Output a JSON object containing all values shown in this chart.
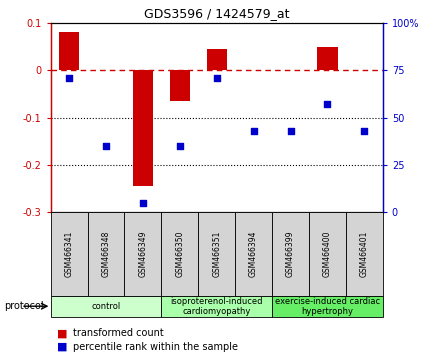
{
  "title": "GDS3596 / 1424579_at",
  "samples": [
    "GSM466341",
    "GSM466348",
    "GSM466349",
    "GSM466350",
    "GSM466351",
    "GSM466394",
    "GSM466399",
    "GSM466400",
    "GSM466401"
  ],
  "bar_values": [
    0.08,
    0.0,
    -0.245,
    -0.065,
    0.045,
    0.0,
    0.0,
    0.05,
    0.0
  ],
  "dot_values": [
    71,
    35,
    5,
    35,
    71,
    43,
    43,
    57,
    43
  ],
  "bar_color": "#cc0000",
  "dot_color": "#0000cc",
  "dashed_line_color": "#cc0000",
  "ylim_left": [
    -0.3,
    0.1
  ],
  "ylim_right": [
    0,
    100
  ],
  "yticks_left": [
    0.1,
    0.0,
    -0.1,
    -0.2,
    -0.3
  ],
  "yticks_labels_left": [
    "0.1",
    "0",
    "-0.1",
    "-0.2",
    "-0.3"
  ],
  "yticks_right": [
    100,
    75,
    50,
    25,
    0
  ],
  "yticks_labels_right": [
    "100%",
    "75",
    "50",
    "25",
    "0"
  ],
  "groups": [
    {
      "label": "control",
      "start": 0,
      "end": 3,
      "color": "#ccffcc"
    },
    {
      "label": "isoproterenol-induced\ncardiomyopathy",
      "start": 3,
      "end": 6,
      "color": "#aaffaa"
    },
    {
      "label": "exercise-induced cardiac\nhypertrophy",
      "start": 6,
      "end": 9,
      "color": "#66ee66"
    }
  ],
  "protocol_label": "protocol",
  "legend_bar_label": "transformed count",
  "legend_dot_label": "percentile rank within the sample",
  "sample_box_color": "#d4d4d4",
  "tick_fontsize": 7,
  "sample_fontsize": 5.5,
  "group_fontsize": 6,
  "legend_fontsize": 7,
  "title_fontsize": 9
}
